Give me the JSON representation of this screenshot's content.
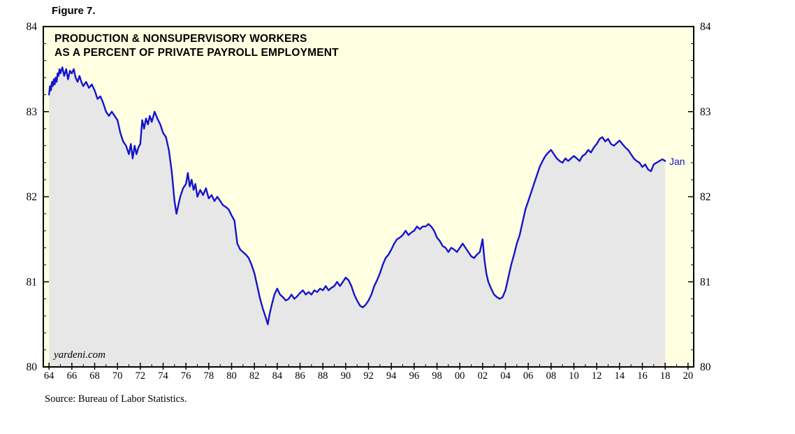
{
  "figure_label": "Figure 7.",
  "source": "Source:  Bureau of Labor Statistics.",
  "chart_data": {
    "type": "line",
    "title_line1": "PRODUCTION & NONSUPERVISORY WORKERS",
    "title_line2": "AS A PERCENT OF PRIVATE PAYROLL EMPLOYMENT",
    "watermark": "yardeni.com",
    "last_point_annotation": "Jan",
    "grid": false,
    "legend": "none",
    "x_range": [
      1963.5,
      2020.5
    ],
    "y_range": [
      80,
      84
    ],
    "y_ticks": [
      80,
      81,
      82,
      83,
      84
    ],
    "y_minor_step": 0.2,
    "x_ticks": [
      [
        1964,
        "64"
      ],
      [
        1966,
        "66"
      ],
      [
        1968,
        "68"
      ],
      [
        1970,
        "70"
      ],
      [
        1972,
        "72"
      ],
      [
        1974,
        "74"
      ],
      [
        1976,
        "76"
      ],
      [
        1978,
        "78"
      ],
      [
        1980,
        "80"
      ],
      [
        1982,
        "82"
      ],
      [
        1984,
        "84"
      ],
      [
        1986,
        "86"
      ],
      [
        1988,
        "88"
      ],
      [
        1990,
        "90"
      ],
      [
        1992,
        "92"
      ],
      [
        1994,
        "94"
      ],
      [
        1996,
        "96"
      ],
      [
        1998,
        "98"
      ],
      [
        2000,
        "00"
      ],
      [
        2002,
        "02"
      ],
      [
        2004,
        "04"
      ],
      [
        2006,
        "06"
      ],
      [
        2008,
        "08"
      ],
      [
        2010,
        "10"
      ],
      [
        2012,
        "12"
      ],
      [
        2014,
        "14"
      ],
      [
        2016,
        "16"
      ],
      [
        2018,
        "18"
      ],
      [
        2020,
        "20"
      ]
    ],
    "colors": {
      "plot_bg": "#FFFFE1",
      "area_fill": "#E7E7E7",
      "line": "#1414CC",
      "axis": "#000000"
    },
    "series": [
      {
        "name": "Production & nonsupervisory workers as percent of private payroll employment",
        "points": [
          [
            1964.0,
            83.2
          ],
          [
            1964.08,
            83.3
          ],
          [
            1964.17,
            83.25
          ],
          [
            1964.25,
            83.35
          ],
          [
            1964.33,
            83.3
          ],
          [
            1964.42,
            83.38
          ],
          [
            1964.5,
            83.32
          ],
          [
            1964.58,
            83.4
          ],
          [
            1964.67,
            83.35
          ],
          [
            1964.75,
            83.45
          ],
          [
            1964.83,
            83.42
          ],
          [
            1964.92,
            83.5
          ],
          [
            1965.0,
            83.45
          ],
          [
            1965.17,
            83.52
          ],
          [
            1965.33,
            83.42
          ],
          [
            1965.5,
            83.5
          ],
          [
            1965.67,
            83.38
          ],
          [
            1965.83,
            83.48
          ],
          [
            1966.0,
            83.45
          ],
          [
            1966.17,
            83.5
          ],
          [
            1966.33,
            83.4
          ],
          [
            1966.5,
            83.35
          ],
          [
            1966.67,
            83.42
          ],
          [
            1966.83,
            83.35
          ],
          [
            1967.0,
            83.3
          ],
          [
            1967.25,
            83.35
          ],
          [
            1967.5,
            83.28
          ],
          [
            1967.75,
            83.32
          ],
          [
            1968.0,
            83.25
          ],
          [
            1968.25,
            83.15
          ],
          [
            1968.5,
            83.18
          ],
          [
            1968.75,
            83.1
          ],
          [
            1969.0,
            83.0
          ],
          [
            1969.25,
            82.95
          ],
          [
            1969.5,
            83.0
          ],
          [
            1969.75,
            82.95
          ],
          [
            1970.0,
            82.9
          ],
          [
            1970.25,
            82.75
          ],
          [
            1970.5,
            82.65
          ],
          [
            1970.75,
            82.6
          ],
          [
            1971.0,
            82.5
          ],
          [
            1971.17,
            82.62
          ],
          [
            1971.33,
            82.45
          ],
          [
            1971.5,
            82.6
          ],
          [
            1971.67,
            82.5
          ],
          [
            1971.83,
            82.58
          ],
          [
            1972.0,
            82.62
          ],
          [
            1972.17,
            82.9
          ],
          [
            1972.33,
            82.8
          ],
          [
            1972.5,
            82.92
          ],
          [
            1972.67,
            82.85
          ],
          [
            1972.83,
            82.95
          ],
          [
            1973.0,
            82.88
          ],
          [
            1973.25,
            83.0
          ],
          [
            1973.5,
            82.92
          ],
          [
            1973.75,
            82.85
          ],
          [
            1974.0,
            82.75
          ],
          [
            1974.25,
            82.7
          ],
          [
            1974.5,
            82.55
          ],
          [
            1974.75,
            82.3
          ],
          [
            1975.0,
            81.95
          ],
          [
            1975.17,
            81.8
          ],
          [
            1975.33,
            81.9
          ],
          [
            1975.5,
            82.0
          ],
          [
            1975.75,
            82.1
          ],
          [
            1976.0,
            82.15
          ],
          [
            1976.17,
            82.28
          ],
          [
            1976.33,
            82.12
          ],
          [
            1976.5,
            82.2
          ],
          [
            1976.67,
            82.08
          ],
          [
            1976.83,
            82.15
          ],
          [
            1977.0,
            82.0
          ],
          [
            1977.25,
            82.08
          ],
          [
            1977.5,
            82.02
          ],
          [
            1977.75,
            82.1
          ],
          [
            1978.0,
            81.98
          ],
          [
            1978.25,
            82.02
          ],
          [
            1978.5,
            81.95
          ],
          [
            1978.75,
            82.0
          ],
          [
            1979.0,
            81.95
          ],
          [
            1979.25,
            81.9
          ],
          [
            1979.5,
            81.88
          ],
          [
            1979.75,
            81.85
          ],
          [
            1980.0,
            81.78
          ],
          [
            1980.25,
            81.72
          ],
          [
            1980.5,
            81.45
          ],
          [
            1980.75,
            81.38
          ],
          [
            1981.0,
            81.35
          ],
          [
            1981.25,
            81.32
          ],
          [
            1981.5,
            81.28
          ],
          [
            1981.75,
            81.2
          ],
          [
            1982.0,
            81.1
          ],
          [
            1982.25,
            80.95
          ],
          [
            1982.5,
            80.8
          ],
          [
            1982.75,
            80.68
          ],
          [
            1983.0,
            80.58
          ],
          [
            1983.17,
            80.5
          ],
          [
            1983.33,
            80.62
          ],
          [
            1983.5,
            80.72
          ],
          [
            1983.75,
            80.85
          ],
          [
            1984.0,
            80.92
          ],
          [
            1984.25,
            80.85
          ],
          [
            1984.5,
            80.82
          ],
          [
            1984.75,
            80.78
          ],
          [
            1985.0,
            80.8
          ],
          [
            1985.25,
            80.85
          ],
          [
            1985.5,
            80.8
          ],
          [
            1985.75,
            80.83
          ],
          [
            1986.0,
            80.87
          ],
          [
            1986.25,
            80.9
          ],
          [
            1986.5,
            80.85
          ],
          [
            1986.75,
            80.88
          ],
          [
            1987.0,
            80.85
          ],
          [
            1987.25,
            80.9
          ],
          [
            1987.5,
            80.88
          ],
          [
            1987.75,
            80.92
          ],
          [
            1988.0,
            80.9
          ],
          [
            1988.25,
            80.95
          ],
          [
            1988.5,
            80.9
          ],
          [
            1988.75,
            80.93
          ],
          [
            1989.0,
            80.95
          ],
          [
            1989.25,
            81.0
          ],
          [
            1989.5,
            80.95
          ],
          [
            1989.75,
            81.0
          ],
          [
            1990.0,
            81.05
          ],
          [
            1990.25,
            81.02
          ],
          [
            1990.5,
            80.95
          ],
          [
            1990.75,
            80.85
          ],
          [
            1991.0,
            80.78
          ],
          [
            1991.25,
            80.72
          ],
          [
            1991.5,
            80.7
          ],
          [
            1991.75,
            80.73
          ],
          [
            1992.0,
            80.78
          ],
          [
            1992.25,
            80.85
          ],
          [
            1992.5,
            80.95
          ],
          [
            1992.75,
            81.02
          ],
          [
            1993.0,
            81.1
          ],
          [
            1993.25,
            81.2
          ],
          [
            1993.5,
            81.28
          ],
          [
            1993.75,
            81.32
          ],
          [
            1994.0,
            81.38
          ],
          [
            1994.25,
            81.45
          ],
          [
            1994.5,
            81.5
          ],
          [
            1994.75,
            81.52
          ],
          [
            1995.0,
            81.55
          ],
          [
            1995.25,
            81.6
          ],
          [
            1995.5,
            81.55
          ],
          [
            1995.75,
            81.58
          ],
          [
            1996.0,
            81.6
          ],
          [
            1996.25,
            81.65
          ],
          [
            1996.5,
            81.62
          ],
          [
            1996.75,
            81.65
          ],
          [
            1997.0,
            81.65
          ],
          [
            1997.25,
            81.68
          ],
          [
            1997.5,
            81.65
          ],
          [
            1997.75,
            81.6
          ],
          [
            1998.0,
            81.52
          ],
          [
            1998.25,
            81.48
          ],
          [
            1998.5,
            81.42
          ],
          [
            1998.75,
            81.4
          ],
          [
            1999.0,
            81.35
          ],
          [
            1999.25,
            81.4
          ],
          [
            1999.5,
            81.38
          ],
          [
            1999.75,
            81.35
          ],
          [
            2000.0,
            81.4
          ],
          [
            2000.25,
            81.45
          ],
          [
            2000.5,
            81.4
          ],
          [
            2000.75,
            81.35
          ],
          [
            2001.0,
            81.3
          ],
          [
            2001.25,
            81.28
          ],
          [
            2001.5,
            81.32
          ],
          [
            2001.75,
            81.35
          ],
          [
            2002.0,
            81.5
          ],
          [
            2002.17,
            81.25
          ],
          [
            2002.33,
            81.1
          ],
          [
            2002.5,
            81.0
          ],
          [
            2002.75,
            80.92
          ],
          [
            2003.0,
            80.85
          ],
          [
            2003.25,
            80.82
          ],
          [
            2003.5,
            80.8
          ],
          [
            2003.75,
            80.82
          ],
          [
            2004.0,
            80.9
          ],
          [
            2004.25,
            81.05
          ],
          [
            2004.5,
            81.2
          ],
          [
            2004.75,
            81.32
          ],
          [
            2005.0,
            81.45
          ],
          [
            2005.25,
            81.55
          ],
          [
            2005.5,
            81.7
          ],
          [
            2005.75,
            81.85
          ],
          [
            2006.0,
            81.95
          ],
          [
            2006.25,
            82.05
          ],
          [
            2006.5,
            82.15
          ],
          [
            2006.75,
            82.25
          ],
          [
            2007.0,
            82.35
          ],
          [
            2007.25,
            82.42
          ],
          [
            2007.5,
            82.48
          ],
          [
            2007.75,
            82.52
          ],
          [
            2008.0,
            82.55
          ],
          [
            2008.25,
            82.5
          ],
          [
            2008.5,
            82.45
          ],
          [
            2008.75,
            82.42
          ],
          [
            2009.0,
            82.4
          ],
          [
            2009.25,
            82.45
          ],
          [
            2009.5,
            82.42
          ],
          [
            2009.75,
            82.45
          ],
          [
            2010.0,
            82.48
          ],
          [
            2010.25,
            82.45
          ],
          [
            2010.5,
            82.42
          ],
          [
            2010.75,
            82.48
          ],
          [
            2011.0,
            82.5
          ],
          [
            2011.25,
            82.55
          ],
          [
            2011.5,
            82.52
          ],
          [
            2011.75,
            82.58
          ],
          [
            2012.0,
            82.62
          ],
          [
            2012.25,
            82.68
          ],
          [
            2012.5,
            82.7
          ],
          [
            2012.75,
            82.65
          ],
          [
            2013.0,
            82.68
          ],
          [
            2013.25,
            82.62
          ],
          [
            2013.5,
            82.6
          ],
          [
            2013.75,
            82.63
          ],
          [
            2014.0,
            82.66
          ],
          [
            2014.25,
            82.62
          ],
          [
            2014.5,
            82.58
          ],
          [
            2014.75,
            82.55
          ],
          [
            2015.0,
            82.5
          ],
          [
            2015.25,
            82.45
          ],
          [
            2015.5,
            82.42
          ],
          [
            2015.75,
            82.4
          ],
          [
            2016.0,
            82.35
          ],
          [
            2016.25,
            82.38
          ],
          [
            2016.5,
            82.32
          ],
          [
            2016.75,
            82.3
          ],
          [
            2017.0,
            82.38
          ],
          [
            2017.25,
            82.4
          ],
          [
            2017.5,
            82.42
          ],
          [
            2017.75,
            82.44
          ],
          [
            2018.0,
            82.42
          ]
        ]
      }
    ]
  }
}
